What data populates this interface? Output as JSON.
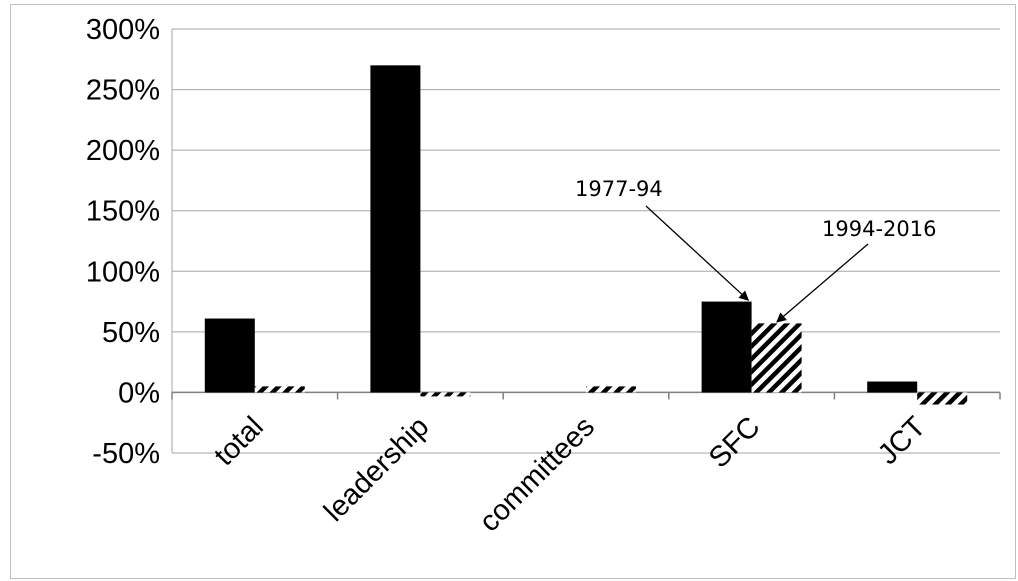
{
  "chart_data": {
    "type": "bar",
    "categories": [
      "total",
      "leadership",
      "committees",
      "SFC",
      "JCT"
    ],
    "series": [
      {
        "values": [
          61,
          270,
          0,
          75,
          9
        ],
        "color": "#000000",
        "fill": "solid"
      },
      {
        "values": [
          5,
          -2,
          5,
          57,
          -10
        ],
        "color": "#000000",
        "fill": "diagonal-hatch"
      }
    ],
    "ylim": [
      -50,
      300
    ],
    "yticks": [
      "300%",
      "250%",
      "200%",
      "150%",
      "100%",
      "50%",
      "0%",
      "-50%"
    ],
    "ytick_values": [
      300,
      250,
      200,
      150,
      100,
      50,
      0,
      -50
    ],
    "grid": true,
    "annotations": [
      {
        "text": "1977-94",
        "points_to": "SFC series 1"
      },
      {
        "text": "1994-2016",
        "points_to": "SFC series 2"
      }
    ]
  }
}
